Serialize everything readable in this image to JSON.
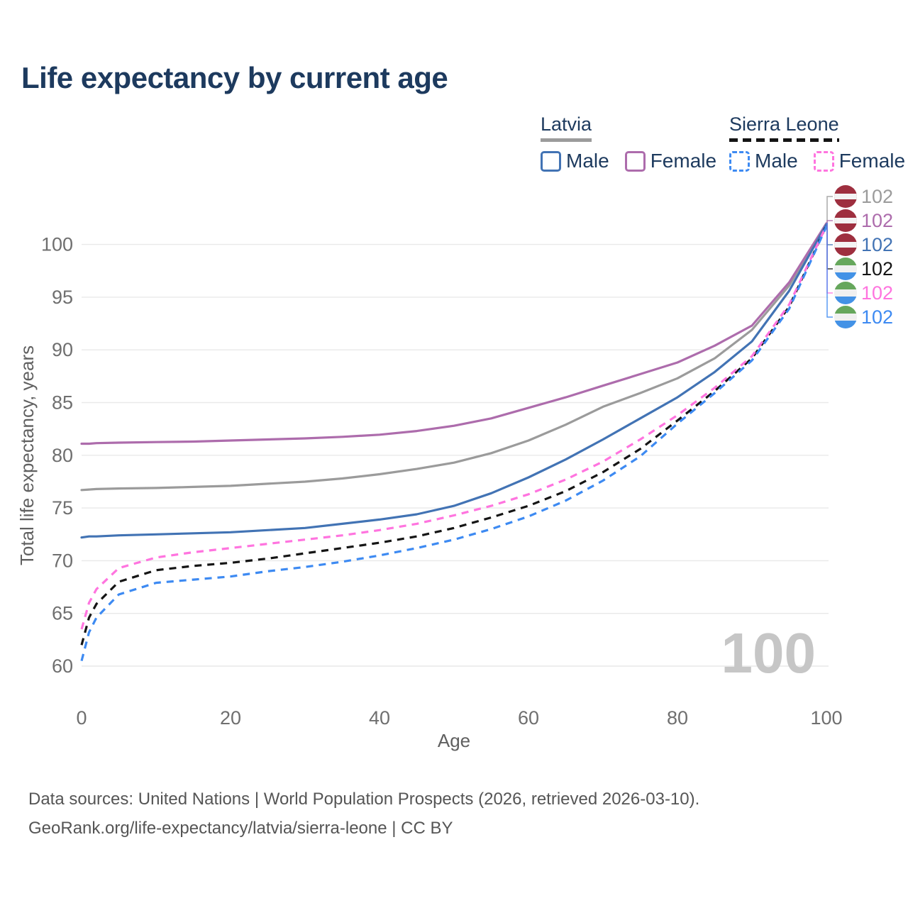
{
  "title": "Life expectancy by current age",
  "watermark": "100",
  "legend": {
    "groups": [
      {
        "label": "Latvia",
        "line_style": "solid",
        "line_color": "#9b9b9b",
        "items": [
          {
            "label": "Male",
            "color": "#4273b4",
            "dashed": false
          },
          {
            "label": "Female",
            "color": "#ad6cac",
            "dashed": false
          }
        ]
      },
      {
        "label": "Sierra Leone",
        "line_style": "dashed",
        "line_color": "#141414",
        "items": [
          {
            "label": "Male",
            "color": "#3d8af2",
            "dashed": true
          },
          {
            "label": "Female",
            "color": "#ff74df",
            "dashed": true
          }
        ]
      }
    ]
  },
  "footer": {
    "line1": "Data sources: United Nations | World Population Prospects (2026, retrieved 2026-03-10).",
    "line2": "GeoRank.org/life-expectancy/latvia/sierra-leone | CC BY"
  },
  "flag_colors": {
    "lv": {
      "top": "#9e2f3f",
      "band": "#f3f3f3"
    },
    "sl": {
      "top": "#66a75c",
      "band": "#f0f0f0",
      "bottom": "#4392e6"
    }
  },
  "chart_data": {
    "type": "line",
    "title": "Life expectancy by current age",
    "xlabel": "Age",
    "ylabel": "Total life expectancy, years",
    "xlim": [
      0,
      100
    ],
    "ylim": [
      60,
      103
    ],
    "x_ticks": [
      0,
      20,
      40,
      60,
      80,
      100
    ],
    "y_ticks": [
      60,
      65,
      70,
      75,
      80,
      85,
      90,
      95,
      100
    ],
    "grid": "horizontal-only",
    "legend_position": "top-right",
    "current_age_indicator": "100",
    "x": [
      0,
      1,
      2,
      5,
      10,
      15,
      20,
      25,
      30,
      35,
      40,
      45,
      50,
      55,
      60,
      65,
      70,
      75,
      80,
      85,
      90,
      95,
      100
    ],
    "series": [
      {
        "id": "latvia-total",
        "name": "Latvia (both sexes)",
        "country": "Latvia",
        "flag": "lv",
        "color": "#9b9b9b",
        "dashed": false,
        "end_label": "102",
        "values": [
          76.7,
          76.75,
          76.8,
          76.85,
          76.9,
          77.0,
          77.1,
          77.3,
          77.5,
          77.8,
          78.2,
          78.7,
          79.3,
          80.2,
          81.4,
          82.9,
          84.6,
          85.9,
          87.3,
          89.2,
          91.9,
          96.1,
          102.0
        ]
      },
      {
        "id": "latvia-female",
        "name": "Latvia Female",
        "country": "Latvia",
        "flag": "lv",
        "color": "#ad6cac",
        "dashed": false,
        "end_label": "102",
        "values": [
          81.1,
          81.1,
          81.15,
          81.2,
          81.25,
          81.3,
          81.4,
          81.5,
          81.6,
          81.75,
          81.95,
          82.3,
          82.8,
          83.5,
          84.5,
          85.5,
          86.6,
          87.7,
          88.8,
          90.4,
          92.3,
          96.4,
          102.0
        ]
      },
      {
        "id": "latvia-male",
        "name": "Latvia Male",
        "country": "Latvia",
        "flag": "lv",
        "color": "#4273b4",
        "dashed": false,
        "end_label": "102",
        "values": [
          72.2,
          72.3,
          72.3,
          72.4,
          72.5,
          72.6,
          72.7,
          72.9,
          73.1,
          73.5,
          73.9,
          74.4,
          75.2,
          76.4,
          77.9,
          79.6,
          81.5,
          83.5,
          85.5,
          87.9,
          90.8,
          95.6,
          101.9
        ]
      },
      {
        "id": "sierra-leone-total",
        "name": "Sierra Leone (both sexes)",
        "country": "Sierra Leone",
        "flag": "sl",
        "color": "#151515",
        "dashed": true,
        "end_label": "102",
        "values": [
          62.0,
          64.6,
          65.9,
          68.0,
          69.1,
          69.5,
          69.8,
          70.2,
          70.7,
          71.2,
          71.7,
          72.3,
          73.1,
          74.1,
          75.2,
          76.6,
          78.4,
          80.6,
          83.3,
          86.1,
          89.2,
          94.1,
          101.8
        ]
      },
      {
        "id": "sierra-leone-female",
        "name": "Sierra Leone Female",
        "country": "Sierra Leone",
        "flag": "sl",
        "color": "#ff74df",
        "dashed": true,
        "end_label": "102",
        "values": [
          63.5,
          66.0,
          67.3,
          69.3,
          70.3,
          70.8,
          71.2,
          71.6,
          72.0,
          72.4,
          72.9,
          73.5,
          74.3,
          75.2,
          76.3,
          77.7,
          79.4,
          81.5,
          83.8,
          86.4,
          89.4,
          94.3,
          101.8
        ]
      },
      {
        "id": "sierra-leone-male",
        "name": "Sierra Leone Male",
        "country": "Sierra Leone",
        "flag": "sl",
        "color": "#3d8af2",
        "dashed": true,
        "end_label": "102",
        "values": [
          60.5,
          63.2,
          64.6,
          66.8,
          67.9,
          68.2,
          68.5,
          69.0,
          69.4,
          69.9,
          70.5,
          71.2,
          72.0,
          73.0,
          74.2,
          75.7,
          77.6,
          79.9,
          83.0,
          85.9,
          89.0,
          93.9,
          101.7
        ]
      }
    ]
  }
}
